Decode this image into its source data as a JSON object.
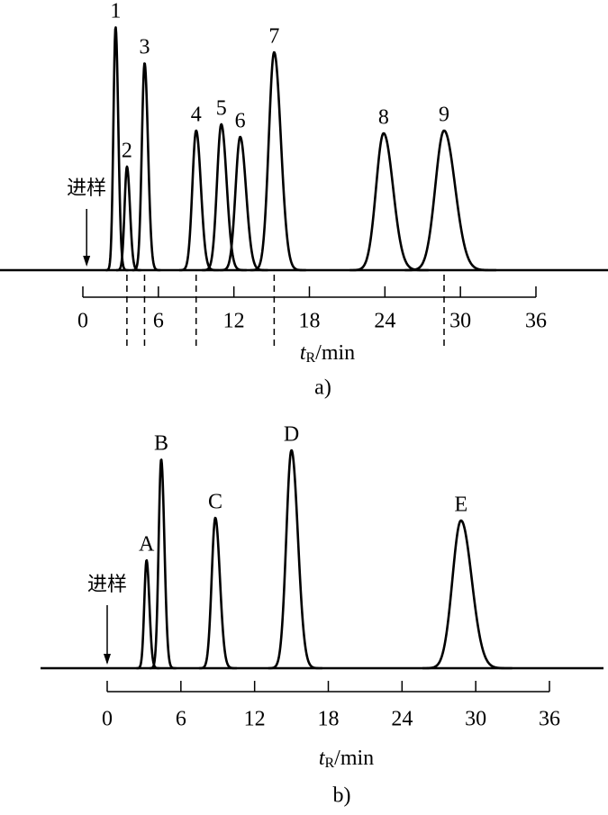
{
  "chart_data": [
    {
      "type": "chromatogram",
      "peaks": [
        {
          "label": "1",
          "t": 2.6,
          "height": 270
        },
        {
          "label": "2",
          "t": 3.5,
          "height": 115
        },
        {
          "label": "3",
          "t": 4.9,
          "height": 230
        },
        {
          "label": "4",
          "t": 9.0,
          "height": 155
        },
        {
          "label": "5",
          "t": 11.0,
          "height": 162
        },
        {
          "label": "6",
          "t": 12.5,
          "height": 148
        },
        {
          "label": "7",
          "t": 15.2,
          "height": 242
        },
        {
          "label": "8",
          "t": 23.9,
          "height": 152
        },
        {
          "label": "9",
          "t": 28.7,
          "height": 155
        }
      ],
      "dashed_peaks": [
        1,
        2,
        3,
        6,
        8
      ],
      "injection": {
        "label": "进样",
        "t": 0.3
      },
      "xlim": [
        0,
        36
      ],
      "xticks": [
        0,
        6,
        12,
        18,
        24,
        30,
        36
      ],
      "ylim": [
        0,
        280
      ],
      "xlabel": {
        "symbol": "t",
        "subscript": "R",
        "unit": "/min"
      },
      "caption": "a)"
    },
    {
      "type": "chromatogram",
      "peaks": [
        {
          "label": "A",
          "t": 3.2,
          "height": 120
        },
        {
          "label": "B",
          "t": 4.4,
          "height": 232
        },
        {
          "label": "C",
          "t": 8.8,
          "height": 167
        },
        {
          "label": "D",
          "t": 15.0,
          "height": 242
        },
        {
          "label": "E",
          "t": 28.8,
          "height": 164
        }
      ],
      "dashed_peaks": [],
      "injection": {
        "label": "进样",
        "t": 0.0
      },
      "xlim": [
        0,
        36
      ],
      "xticks": [
        0,
        6,
        12,
        18,
        24,
        30,
        36
      ],
      "ylim": [
        0,
        280
      ],
      "xlabel": {
        "symbol": "t",
        "subscript": "R",
        "unit": "/min"
      },
      "caption": "b)"
    }
  ]
}
